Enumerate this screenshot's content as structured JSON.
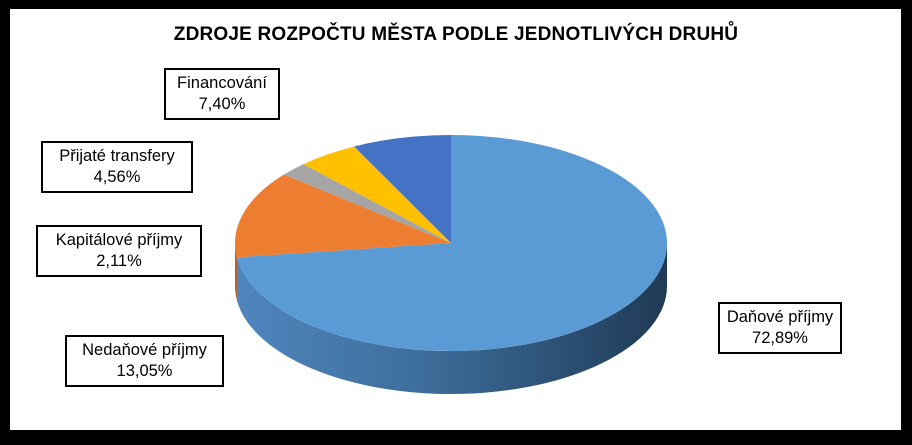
{
  "chart_data": {
    "type": "pie",
    "title": "ZDROJE ROZPOČTU MĚSTA PODLE JEDNOTLIVÝCH DRUHŮ",
    "slices": [
      {
        "name": "Daňové příjmy",
        "value_label": "72,89%",
        "value": 72.89,
        "color": "#5B9BD5"
      },
      {
        "name": "Nedaňové příjmy",
        "value_label": "13,05%",
        "value": 13.05,
        "color": "#ED7D31"
      },
      {
        "name": "Kapitálové příjmy",
        "value_label": "2,11%",
        "value": 2.11,
        "color": "#A5A5A5"
      },
      {
        "name": "Přijaté transfery",
        "value_label": "4,56%",
        "value": 4.56,
        "color": "#FFC000"
      },
      {
        "name": "Financování",
        "value_label": "7,40%",
        "value": 7.4,
        "color": "#4472C4"
      }
    ]
  }
}
